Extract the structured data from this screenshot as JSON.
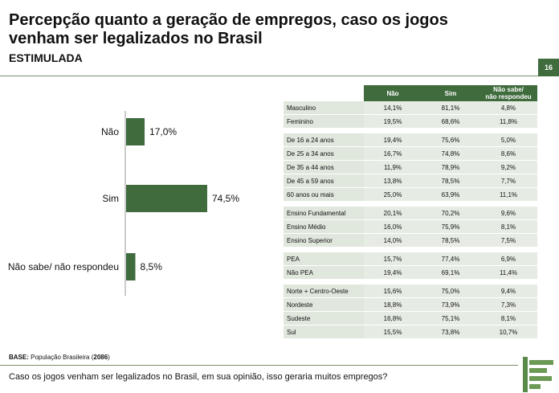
{
  "header": {
    "title_line1": "Percepção quanto a geração de empregos, caso os jogos",
    "title_line2": "venham ser legalizados no Brasil",
    "subtitle": "ESTIMULADA",
    "page_number": "16"
  },
  "chart_data": {
    "type": "bar",
    "orientation": "horizontal",
    "categories": [
      "Não",
      "Sim",
      "Não sabe/ não respondeu"
    ],
    "values": [
      17.0,
      74.5,
      8.5
    ],
    "value_labels": [
      "17,0%",
      "74,5%",
      "8,5%"
    ],
    "unit": "%",
    "xlim": [
      0,
      100
    ],
    "grid": false,
    "color": "#3f6b3d"
  },
  "table": {
    "columns": [
      "Não",
      "Sim",
      "Não sabe/\nnão respondeu"
    ],
    "groups": [
      [
        {
          "label": "Masculino",
          "values": [
            "14,1%",
            "81,1%",
            "4,8%"
          ]
        },
        {
          "label": "Feminino",
          "values": [
            "19,5%",
            "68,6%",
            "11,8%"
          ]
        }
      ],
      [
        {
          "label": "De 16 a 24 anos",
          "values": [
            "19,4%",
            "75,6%",
            "5,0%"
          ]
        },
        {
          "label": "De 25 a 34 anos",
          "values": [
            "16,7%",
            "74,8%",
            "8,6%"
          ]
        },
        {
          "label": "De 35 a 44 anos",
          "values": [
            "11,9%",
            "78,9%",
            "9,2%"
          ]
        },
        {
          "label": "De 45 a 59 anos",
          "values": [
            "13,8%",
            "78,5%",
            "7,7%"
          ]
        },
        {
          "label": "60 anos ou mais",
          "values": [
            "25,0%",
            "63,9%",
            "11,1%"
          ]
        }
      ],
      [
        {
          "label": "Ensino Fundamental",
          "values": [
            "20,1%",
            "70,2%",
            "9,6%"
          ]
        },
        {
          "label": "Ensino Médio",
          "values": [
            "16,0%",
            "75,9%",
            "8,1%"
          ]
        },
        {
          "label": "Ensino Superior",
          "values": [
            "14,0%",
            "78,5%",
            "7,5%"
          ]
        }
      ],
      [
        {
          "label": "PEA",
          "values": [
            "15,7%",
            "77,4%",
            "6,9%"
          ]
        },
        {
          "label": "Não PEA",
          "values": [
            "19,4%",
            "69,1%",
            "11,4%"
          ]
        }
      ],
      [
        {
          "label": "Norte + Centro-Oeste",
          "values": [
            "15,6%",
            "75,0%",
            "9,4%"
          ]
        },
        {
          "label": "Nordeste",
          "values": [
            "18,8%",
            "73,9%",
            "7,3%"
          ]
        },
        {
          "label": "Sudeste",
          "values": [
            "16,8%",
            "75,1%",
            "8,1%"
          ]
        },
        {
          "label": "Sul",
          "values": [
            "15,5%",
            "73,8%",
            "10,7%"
          ]
        }
      ]
    ]
  },
  "footer": {
    "base_label": "BASE:",
    "base_text": " População Brasileira (",
    "base_count": "2086",
    "base_close": ")",
    "question": "Caso os jogos venham ser legalizados no Brasil, em sua opinião, isso geraria muitos empregos?"
  }
}
